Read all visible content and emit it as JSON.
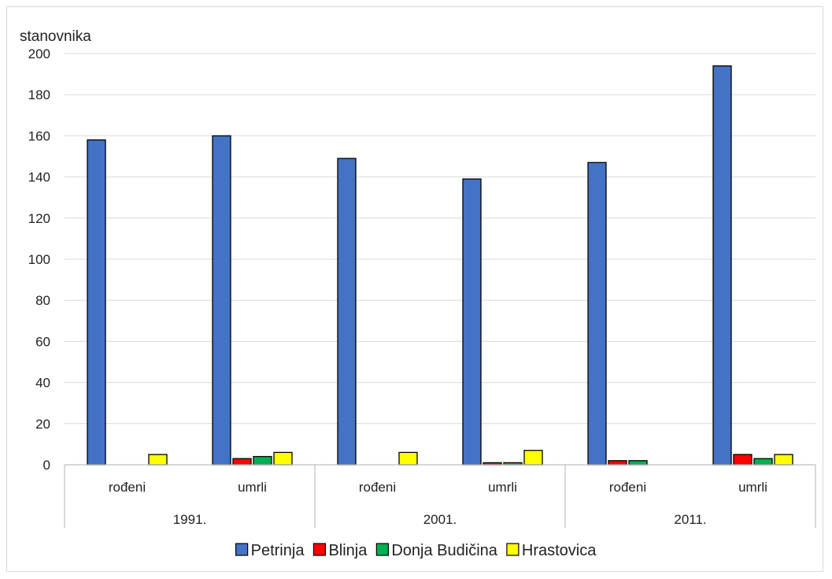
{
  "chart_data": {
    "type": "bar",
    "ylabel": "stanovnika",
    "ylim": [
      0,
      200
    ],
    "yticks": [
      0,
      20,
      40,
      60,
      80,
      100,
      120,
      140,
      160,
      180,
      200
    ],
    "grid": true,
    "legend_position": "bottom",
    "groups": [
      {
        "year": "1991.",
        "categories": [
          "rođeni",
          "umrli"
        ]
      },
      {
        "year": "2001.",
        "categories": [
          "rođeni",
          "umrli"
        ]
      },
      {
        "year": "2011.",
        "categories": [
          "rođeni",
          "umrli"
        ]
      }
    ],
    "series": [
      {
        "name": "Petrinja",
        "color": "#4472c4",
        "values": [
          158,
          160,
          149,
          139,
          147,
          194
        ]
      },
      {
        "name": "Blinja",
        "color": "#ff0000",
        "values": [
          0,
          3,
          0,
          1,
          2,
          5
        ]
      },
      {
        "name": "Donja Budičina",
        "color": "#00b050",
        "values": [
          0,
          4,
          0,
          1,
          2,
          3
        ]
      },
      {
        "name": "Hrastovica",
        "color": "#ffff00",
        "values": [
          5,
          6,
          6,
          7,
          0,
          5
        ]
      }
    ]
  }
}
